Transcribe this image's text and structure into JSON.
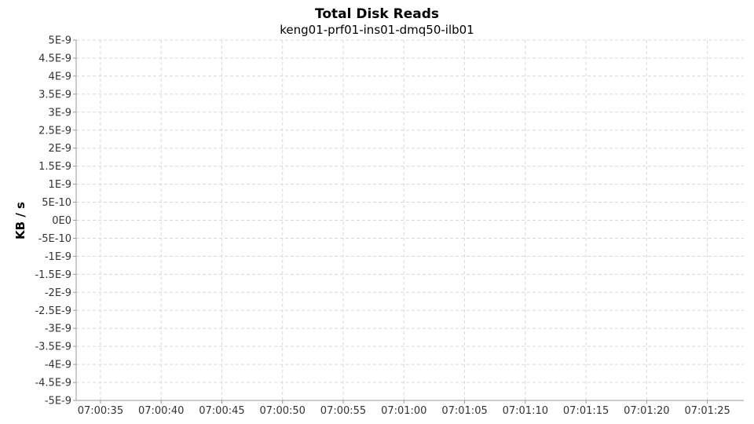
{
  "chart_data": {
    "type": "line",
    "title": "Total Disk Reads",
    "subtitle": "keng01-prf01-ins01-dmq50-ilb01",
    "ylabel": "KB / s",
    "xlabel": "",
    "ylim": [
      -5e-09,
      5e-09
    ],
    "y_ticks": [
      {
        "value": 5e-09,
        "label": "5E-9"
      },
      {
        "value": 4.5e-09,
        "label": "4.5E-9"
      },
      {
        "value": 4e-09,
        "label": "4E-9"
      },
      {
        "value": 3.5e-09,
        "label": "3.5E-9"
      },
      {
        "value": 3e-09,
        "label": "3E-9"
      },
      {
        "value": 2.5e-09,
        "label": "2.5E-9"
      },
      {
        "value": 2e-09,
        "label": "2E-9"
      },
      {
        "value": 1.5e-09,
        "label": "1.5E-9"
      },
      {
        "value": 1e-09,
        "label": "1E-9"
      },
      {
        "value": 5e-10,
        "label": "5E-10"
      },
      {
        "value": 0,
        "label": "0E0"
      },
      {
        "value": -5e-10,
        "label": "-5E-10"
      },
      {
        "value": -1e-09,
        "label": "-1E-9"
      },
      {
        "value": -1.5e-09,
        "label": "-1.5E-9"
      },
      {
        "value": -2e-09,
        "label": "-2E-9"
      },
      {
        "value": -2.5e-09,
        "label": "-2.5E-9"
      },
      {
        "value": -3e-09,
        "label": "-3E-9"
      },
      {
        "value": -3.5e-09,
        "label": "-3.5E-9"
      },
      {
        "value": -4e-09,
        "label": "-4E-9"
      },
      {
        "value": -4.5e-09,
        "label": "-4.5E-9"
      },
      {
        "value": -5e-09,
        "label": "-5E-9"
      }
    ],
    "xlim": [
      "07:00:33",
      "07:01:28"
    ],
    "x_ticks": [
      "07:00:35",
      "07:00:40",
      "07:00:45",
      "07:00:50",
      "07:00:55",
      "07:01:00",
      "07:01:05",
      "07:01:10",
      "07:01:15",
      "07:01:20",
      "07:01:25"
    ],
    "series": [],
    "grid": true,
    "legend": "none"
  }
}
